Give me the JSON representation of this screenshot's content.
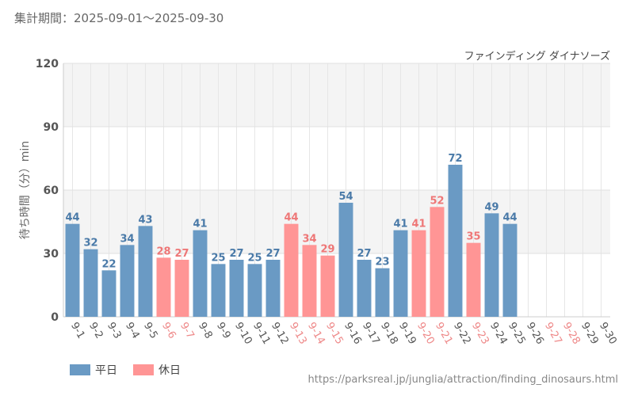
{
  "header": {
    "period": "集計期間：2025-09-01～2025-09-30"
  },
  "chart_data": {
    "type": "bar",
    "subtitle": "ファインディング ダイナソーズ",
    "ylabel": "待ち時間（分）min",
    "ylim": [
      0,
      120
    ],
    "yticks": [
      0,
      30,
      60,
      90,
      120
    ],
    "grid": true,
    "legend_position": "bottom-left",
    "categories": [
      "9-1",
      "9-2",
      "9-3",
      "9-4",
      "9-5",
      "9-6",
      "9-7",
      "9-8",
      "9-9",
      "9-10",
      "9-11",
      "9-12",
      "9-13",
      "9-14",
      "9-15",
      "9-16",
      "9-17",
      "9-18",
      "9-19",
      "9-20",
      "9-21",
      "9-22",
      "9-23",
      "9-24",
      "9-25",
      "9-26",
      "9-27",
      "9-28",
      "9-29",
      "9-30"
    ],
    "values": [
      44,
      32,
      22,
      34,
      43,
      28,
      27,
      41,
      25,
      27,
      25,
      27,
      44,
      34,
      29,
      54,
      27,
      23,
      41,
      41,
      52,
      72,
      35,
      49,
      44,
      null,
      null,
      null,
      null,
      null
    ],
    "day_type": [
      "weekday",
      "weekday",
      "weekday",
      "weekday",
      "weekday",
      "holiday",
      "holiday",
      "weekday",
      "weekday",
      "weekday",
      "weekday",
      "weekday",
      "holiday",
      "holiday",
      "holiday",
      "weekday",
      "weekday",
      "weekday",
      "weekday",
      "holiday",
      "holiday",
      "weekday",
      "holiday",
      "weekday",
      "weekday",
      "weekday",
      "holiday",
      "holiday",
      "weekday",
      "weekday"
    ],
    "series": [
      {
        "name": "平日",
        "color": "#6a9ac4"
      },
      {
        "name": "休日",
        "color": "#ff9595"
      }
    ],
    "label_colors": {
      "weekday": "#4a7aa8",
      "holiday": "#ee7777"
    },
    "xtick_colors": {
      "weekday": "#555555",
      "holiday": "#ee8888"
    }
  },
  "footer": {
    "source_url": "https://parksreal.jp/junglia/attraction/finding_dinosaurs.html"
  }
}
